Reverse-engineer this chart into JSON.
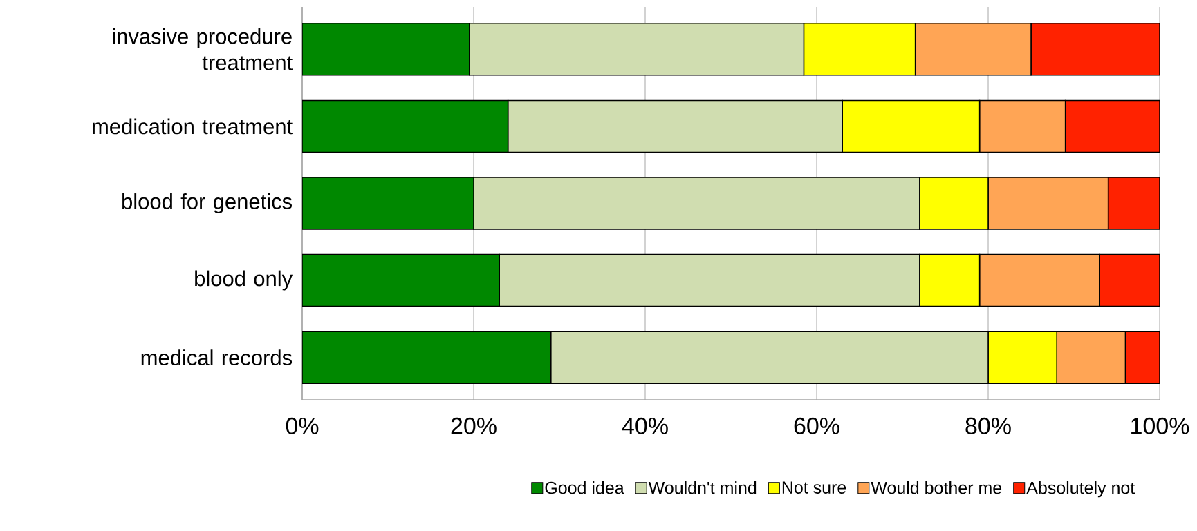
{
  "chart_data": {
    "type": "bar",
    "orientation": "horizontal",
    "stacked": true,
    "categories": [
      "invasive procedure treatment",
      "medication treatment",
      "blood for genetics",
      "blood only",
      "medical records"
    ],
    "series": [
      {
        "name": "Good idea",
        "color": "#008800",
        "values": [
          19.5,
          24,
          20,
          23,
          29
        ]
      },
      {
        "name": "Wouldn't mind",
        "color": "#d0ddb0",
        "values": [
          39,
          39,
          52,
          49,
          51
        ]
      },
      {
        "name": "Not sure",
        "color": "#ffff00",
        "values": [
          13,
          16,
          8,
          7,
          8
        ]
      },
      {
        "name": "Would bother me",
        "color": "#ffa555",
        "values": [
          13.5,
          10,
          14,
          14,
          8
        ]
      },
      {
        "name": "Absolutely not",
        "color": "#ff2200",
        "values": [
          15,
          11,
          6,
          7,
          4
        ]
      }
    ],
    "xlim": [
      0,
      100
    ],
    "xticks": [
      {
        "value": 0,
        "label": "0%"
      },
      {
        "value": 20,
        "label": "20%"
      },
      {
        "value": 40,
        "label": "40%"
      },
      {
        "value": 60,
        "label": "60%"
      },
      {
        "value": 80,
        "label": "80%"
      },
      {
        "value": 100,
        "label": "100%"
      }
    ],
    "grid": "x",
    "legend": "bottom"
  }
}
